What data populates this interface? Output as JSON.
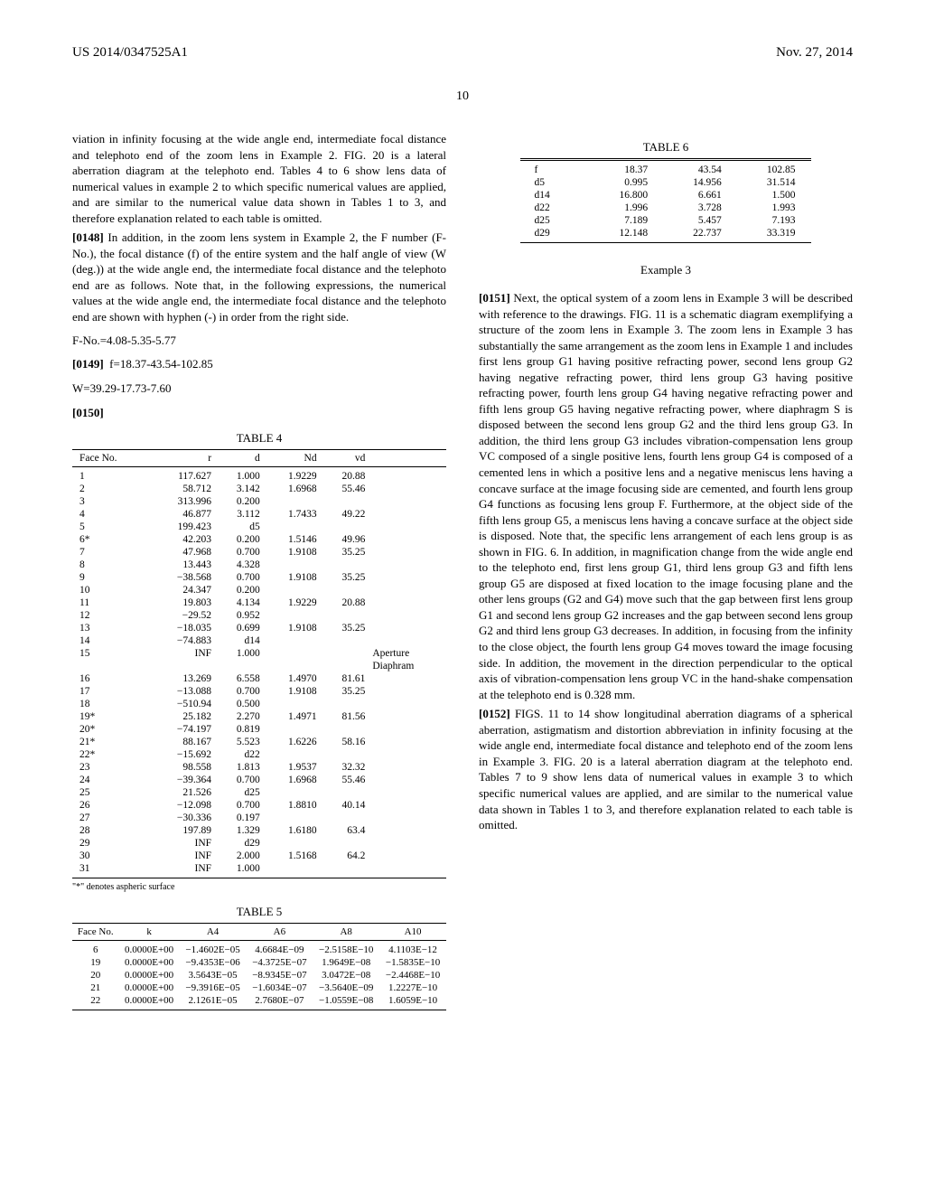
{
  "header": {
    "left": "US 2014/0347525A1",
    "right": "Nov. 27, 2014"
  },
  "pagenum": "10",
  "left": {
    "para_top": "viation in infinity focusing at the wide angle end, intermediate focal distance and telephoto end of the zoom lens in Example 2. FIG. 20 is a lateral aberration diagram at the telephoto end. Tables 4 to 6 show lens data of numerical values in example 2 to which specific numerical values are applied, and are similar to the numerical value data shown in Tables 1 to 3, and therefore explanation related to each table is omitted.",
    "p0148_num": "[0148]",
    "p0148": " In addition, in the zoom lens system in Example 2, the F number (F-No.), the focal distance (f) of the entire system and the half angle of view (W (deg.)) at the wide angle end, the intermediate focal distance and the telephoto end are as follows. Note that, in the following expressions, the numerical values at the wide angle end, the intermediate focal distance and the telephoto end are shown with hyphen (-) in order from the right side.",
    "fno": "F-No.=4.08-5.35-5.77",
    "p0149_num": "[0149]",
    "p0149": "f=18.37-43.54-102.85",
    "wline": "W=39.29-17.73-7.60",
    "p0150_num": "[0150]",
    "tbl4_title": "TABLE 4",
    "tbl4_h": {
      "c1": "Face No.",
      "c2": "r",
      "c3": "d",
      "c4": "Nd",
      "c5": "vd",
      "c6": ""
    },
    "tbl4_rows": [
      [
        "1",
        "117.627",
        "1.000",
        "1.9229",
        "20.88",
        ""
      ],
      [
        "2",
        "58.712",
        "3.142",
        "1.6968",
        "55.46",
        ""
      ],
      [
        "3",
        "313.996",
        "0.200",
        "",
        "",
        ""
      ],
      [
        "4",
        "46.877",
        "3.112",
        "1.7433",
        "49.22",
        ""
      ],
      [
        "5",
        "199.423",
        "d5",
        "",
        "",
        ""
      ],
      [
        "6*",
        "42.203",
        "0.200",
        "1.5146",
        "49.96",
        ""
      ],
      [
        "7",
        "47.968",
        "0.700",
        "1.9108",
        "35.25",
        ""
      ],
      [
        "8",
        "13.443",
        "4.328",
        "",
        "",
        ""
      ],
      [
        "9",
        "−38.568",
        "0.700",
        "1.9108",
        "35.25",
        ""
      ],
      [
        "10",
        "24.347",
        "0.200",
        "",
        "",
        ""
      ],
      [
        "11",
        "19.803",
        "4.134",
        "1.9229",
        "20.88",
        ""
      ],
      [
        "12",
        "−29.52",
        "0.952",
        "",
        "",
        ""
      ],
      [
        "13",
        "−18.035",
        "0.699",
        "1.9108",
        "35.25",
        ""
      ],
      [
        "14",
        "−74.883",
        "d14",
        "",
        "",
        ""
      ],
      [
        "15",
        "INF",
        "1.000",
        "",
        "",
        "Aperture"
      ],
      [
        "",
        "",
        "",
        "",
        "",
        "Diaphram"
      ],
      [
        "16",
        "13.269",
        "6.558",
        "1.4970",
        "81.61",
        ""
      ],
      [
        "17",
        "−13.088",
        "0.700",
        "1.9108",
        "35.25",
        ""
      ],
      [
        "18",
        "−510.94",
        "0.500",
        "",
        "",
        ""
      ],
      [
        "19*",
        "25.182",
        "2.270",
        "1.4971",
        "81.56",
        ""
      ],
      [
        "20*",
        "−74.197",
        "0.819",
        "",
        "",
        ""
      ],
      [
        "21*",
        "88.167",
        "5.523",
        "1.6226",
        "58.16",
        ""
      ],
      [
        "22*",
        "−15.692",
        "d22",
        "",
        "",
        ""
      ],
      [
        "23",
        "98.558",
        "1.813",
        "1.9537",
        "32.32",
        ""
      ],
      [
        "24",
        "−39.364",
        "0.700",
        "1.6968",
        "55.46",
        ""
      ],
      [
        "25",
        "21.526",
        "d25",
        "",
        "",
        ""
      ],
      [
        "26",
        "−12.098",
        "0.700",
        "1.8810",
        "40.14",
        ""
      ],
      [
        "27",
        "−30.336",
        "0.197",
        "",
        "",
        ""
      ],
      [
        "28",
        "197.89",
        "1.329",
        "1.6180",
        "63.4",
        ""
      ],
      [
        "29",
        "INF",
        "d29",
        "",
        "",
        ""
      ],
      [
        "30",
        "INF",
        "2.000",
        "1.5168",
        "64.2",
        ""
      ],
      [
        "31",
        "INF",
        "1.000",
        "",
        "",
        ""
      ]
    ],
    "footnote": "\"*\" denotes aspheric surface",
    "tbl5_title": "TABLE 5",
    "tbl5_h": {
      "c1": "Face No.",
      "c2": "k",
      "c3": "A4",
      "c4": "A6",
      "c5": "A8",
      "c6": "A10"
    },
    "tbl5_rows": [
      [
        "6",
        "0.0000E+00",
        "−1.4602E−05",
        "4.6684E−09",
        "−2.5158E−10",
        "4.1103E−12"
      ],
      [
        "19",
        "0.0000E+00",
        "−9.4353E−06",
        "−4.3725E−07",
        "1.9649E−08",
        "−1.5835E−10"
      ],
      [
        "20",
        "0.0000E+00",
        "3.5643E−05",
        "−8.9345E−07",
        "3.0472E−08",
        "−2.4468E−10"
      ],
      [
        "21",
        "0.0000E+00",
        "−9.3916E−05",
        "−1.6034E−07",
        "−3.5640E−09",
        "1.2227E−10"
      ],
      [
        "22",
        "0.0000E+00",
        "2.1261E−05",
        "2.7680E−07",
        "−1.0559E−08",
        "1.6059E−10"
      ]
    ]
  },
  "right": {
    "tbl6_title": "TABLE 6",
    "tbl6_rows": [
      [
        "f",
        "18.37",
        "43.54",
        "102.85"
      ],
      [
        "d5",
        "0.995",
        "14.956",
        "31.514"
      ],
      [
        "d14",
        "16.800",
        "6.661",
        "1.500"
      ],
      [
        "d22",
        "1.996",
        "3.728",
        "1.993"
      ],
      [
        "d25",
        "7.189",
        "5.457",
        "7.193"
      ],
      [
        "d29",
        "12.148",
        "22.737",
        "33.319"
      ]
    ],
    "example3": "Example 3",
    "p0151_num": "[0151]",
    "p0151": " Next, the optical system of a zoom lens in Example 3 will be described with reference to the drawings. FIG. 11 is a schematic diagram exemplifying a structure of the zoom lens in Example 3. The zoom lens in Example 3 has substantially the same arrangement as the zoom lens in Example 1 and includes first lens group G1 having positive refracting power, second lens group G2 having negative refracting power, third lens group G3 having positive refracting power, fourth lens group G4 having negative refracting power and fifth lens group G5 having negative refracting power, where diaphragm S is disposed between the second lens group G2 and the third lens group G3. In addition, the third lens group G3 includes vibration-compensation lens group VC composed of a single positive lens, fourth lens group G4 is composed of a cemented lens in which a positive lens and a negative meniscus lens having a concave surface at the image focusing side are cemented, and fourth lens group G4 functions as focusing lens group F. Furthermore, at the object side of the fifth lens group G5, a meniscus lens having a concave surface at the object side is disposed. Note that, the specific lens arrangement of each lens group is as shown in FIG. 6. In addition, in magnification change from the wide angle end to the telephoto end, first lens group G1, third lens group G3 and fifth lens group G5 are disposed at fixed location to the image focusing plane and the other lens groups (G2 and G4) move such that the gap between first lens group G1 and second lens group G2 increases and the gap between second lens group G2 and third lens group G3 decreases. In addition, in focusing from the infinity to the close object, the fourth lens group G4 moves toward the image focusing side. In addition, the movement in the direction perpendicular to the optical axis of vibration-compensation lens group VC in the hand-shake compensation at the telephoto end is 0.328 mm.",
    "p0152_num": "[0152]",
    "p0152": " FIGS. 11 to 14 show longitudinal aberration diagrams of a spherical aberration, astigmatism and distortion abbreviation in infinity focusing at the wide angle end, intermediate focal distance and telephoto end of the zoom lens in Example 3. FIG. 20 is a lateral aberration diagram at the telephoto end. Tables 7 to 9 show lens data of numerical values in example 3 to which specific numerical values are applied, and are similar to the numerical value data shown in Tables 1 to 3, and therefore explanation related to each table is omitted."
  }
}
